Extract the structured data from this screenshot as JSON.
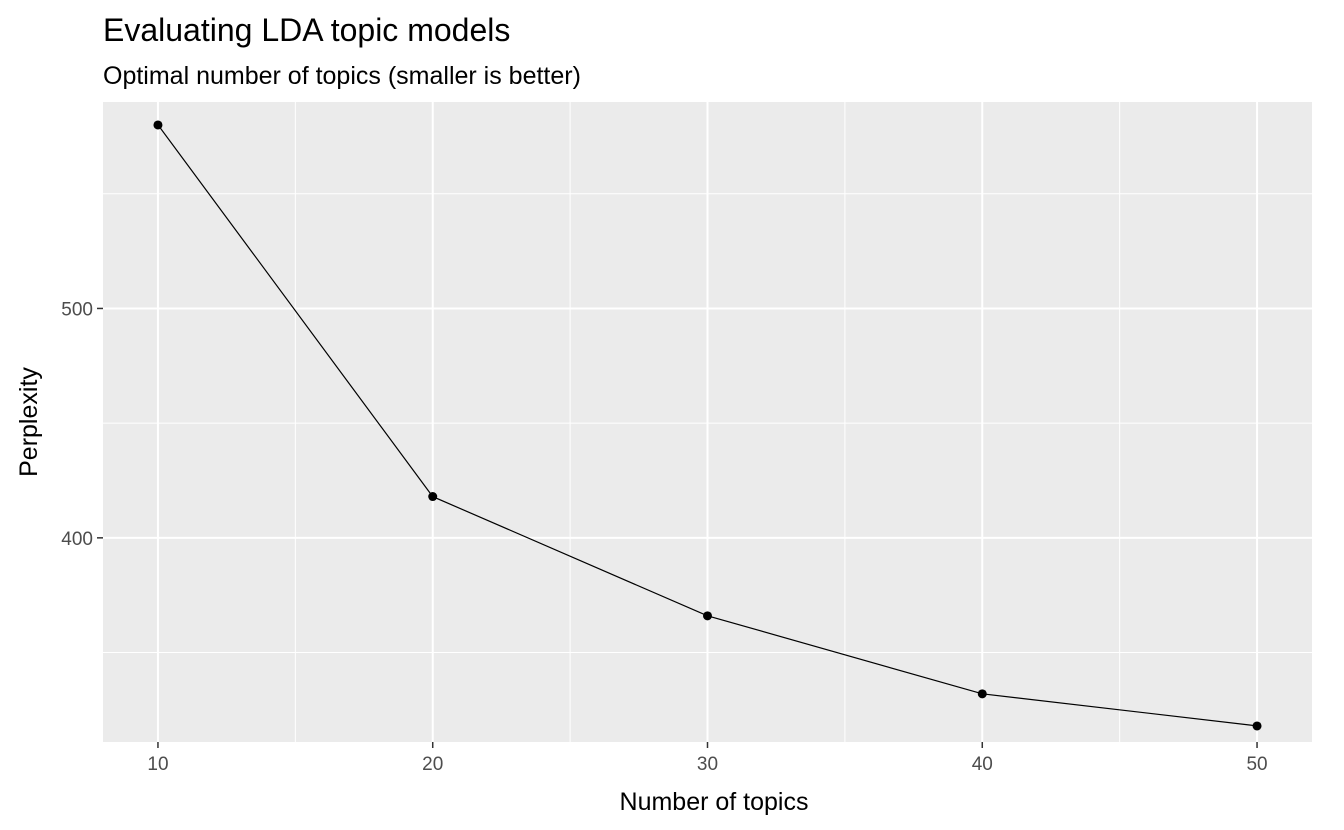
{
  "chart_data": {
    "type": "line",
    "title": "Evaluating LDA topic models",
    "subtitle": "Optimal number of topics (smaller is better)",
    "xlabel": "Number of topics",
    "ylabel": "Perplexity",
    "x": [
      10,
      20,
      30,
      40,
      50
    ],
    "series": [
      {
        "values": [
          580,
          418,
          366,
          332,
          318
        ]
      }
    ],
    "xlim": [
      8,
      52
    ],
    "ylim": [
      311,
      590
    ],
    "x_ticks": [
      10,
      20,
      30,
      40,
      50
    ],
    "x_tick_labels": [
      "10",
      "20",
      "30",
      "40",
      "50"
    ],
    "x_minor_ticks": [
      15,
      25,
      35,
      45
    ],
    "y_ticks": [
      400,
      500
    ],
    "y_tick_labels": [
      "400",
      "500"
    ],
    "y_minor_ticks": [
      350,
      450,
      550
    ],
    "grid": true,
    "legend": "none",
    "colors": {
      "panel_background": "#ebebeb",
      "grid": "#ffffff",
      "line": "#000000",
      "points": "#000000",
      "tick_labels": "#4d4d4d"
    }
  }
}
